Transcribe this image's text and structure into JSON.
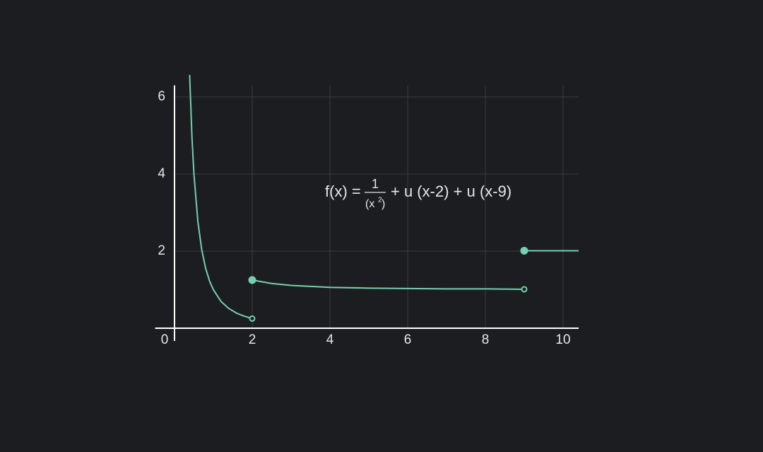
{
  "chart_data": {
    "type": "line",
    "annotation": {
      "lhs": "f(x) =",
      "numerator": "1",
      "denominator_base": "(x",
      "denominator_exp": "2",
      "denominator_close": ")",
      "rhs": "+ u (x-2) + u (x-9)"
    },
    "x": [
      0.39,
      0.45,
      0.5,
      0.6,
      0.7,
      0.8,
      0.9,
      1,
      1.2,
      1.4,
      1.6,
      1.8,
      2,
      null,
      2,
      2.5,
      3,
      4,
      5,
      6,
      7,
      8,
      9,
      null,
      9,
      10.4
    ],
    "series": [
      {
        "color": "#76cfad",
        "values": [
          6.57,
          4.94,
          4,
          2.78,
          2.04,
          1.56,
          1.23,
          1,
          0.69,
          0.51,
          0.39,
          0.31,
          0.25,
          null,
          1.25,
          1.16,
          1.11,
          1.06,
          1.04,
          1.03,
          1.02,
          1.02,
          1.01,
          null,
          2.01,
          2.01
        ]
      }
    ],
    "points": [
      {
        "x": 2,
        "y": 0.25,
        "filled": false
      },
      {
        "x": 2,
        "y": 1.25,
        "filled": true
      },
      {
        "x": 9,
        "y": 1.01,
        "filled": false
      },
      {
        "x": 9,
        "y": 2.01,
        "filled": true
      }
    ],
    "xlim": [
      -0.5,
      10.4
    ],
    "ylim": [
      -0.33,
      6.3
    ],
    "xticks": [
      0,
      2,
      4,
      6,
      8,
      10
    ],
    "yticks": [
      2,
      4,
      6
    ],
    "grid": true
  }
}
